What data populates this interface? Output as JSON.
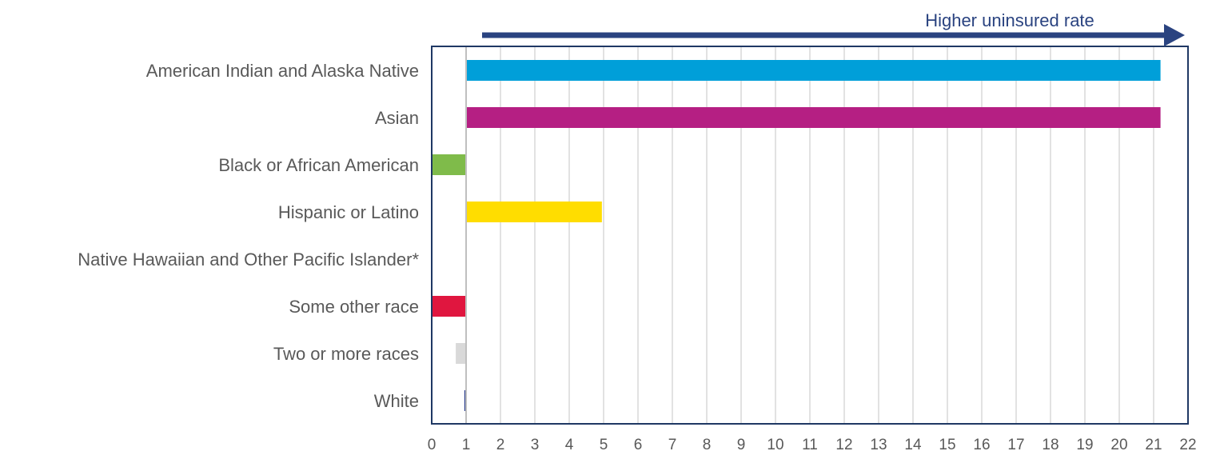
{
  "chart_data": {
    "type": "bar",
    "orientation": "horizontal",
    "baseline": 1,
    "xlim": [
      0,
      22
    ],
    "x_ticks": [
      "0",
      "1",
      "2",
      "3",
      "4",
      "5",
      "6",
      "7",
      "8",
      "9",
      "10",
      "11",
      "12",
      "13",
      "14",
      "15",
      "16",
      "17",
      "18",
      "19",
      "20",
      "21",
      "22"
    ],
    "grid": "vertical",
    "categories": [
      "American Indian and Alaska Native",
      "Asian",
      "Black or African American",
      "Hispanic or Latino",
      "Native Hawaiian and Other Pacific Islander*",
      "Some other race",
      "Two or more races",
      "White"
    ],
    "values": [
      21.2,
      21.2,
      0,
      4.95,
      null,
      0,
      0.7,
      0.95
    ],
    "colors": [
      "#009fd9",
      "#b51f83",
      "#7fbb4a",
      "#ffdd00",
      "#ffffff",
      "#e0163f",
      "#d9d9d9",
      "#2b3f8f"
    ],
    "annotation": {
      "text": "Higher uninsured rate",
      "direction": "right",
      "color": "#2a4380"
    },
    "frame_color": "#1f3864",
    "grid_color": "#d9d9d9"
  }
}
